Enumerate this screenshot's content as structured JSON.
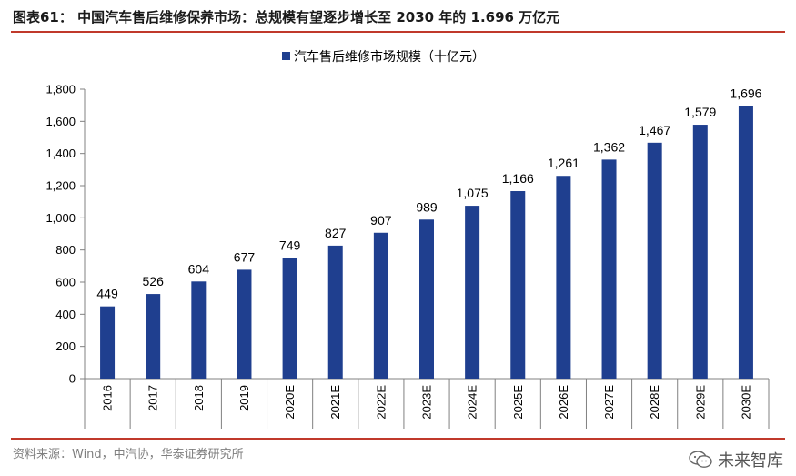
{
  "figure": {
    "title": "图表61：  中国汽车售后维修保养市场：总规模有望逐步增长至 2030 年的 1.696 万亿元",
    "source": "资料来源：Wind，中汽协，华泰证券研究所",
    "watermark": "未来智库"
  },
  "colors": {
    "bar": "#1f3f8f",
    "rule": "#c0392b",
    "axis": "#808080"
  },
  "chart_data": {
    "type": "bar",
    "title": "",
    "xlabel": "",
    "ylabel": "",
    "legend": [
      "汽车售后维修市场规模（十亿元）"
    ],
    "legend_position": "top",
    "categories": [
      "2016",
      "2017",
      "2018",
      "2019",
      "2020E",
      "2021E",
      "2022E",
      "2023E",
      "2024E",
      "2025E",
      "2026E",
      "2027E",
      "2028E",
      "2029E",
      "2030E"
    ],
    "values": [
      449,
      526,
      604,
      677,
      749,
      827,
      907,
      989,
      1075,
      1166,
      1261,
      1362,
      1467,
      1579,
      1696
    ],
    "value_labels": [
      "449",
      "526",
      "604",
      "677",
      "749",
      "827",
      "907",
      "989",
      "1,075",
      "1,166",
      "1,261",
      "1,362",
      "1,467",
      "1,579",
      "1,696"
    ],
    "ylim": [
      0,
      1800
    ],
    "yticks": [
      0,
      200,
      400,
      600,
      800,
      1000,
      1200,
      1400,
      1600,
      1800
    ],
    "ytick_labels": [
      "0",
      "200",
      "400",
      "600",
      "800",
      "1,000",
      "1,200",
      "1,400",
      "1,600",
      "1,800"
    ],
    "grid": false
  }
}
